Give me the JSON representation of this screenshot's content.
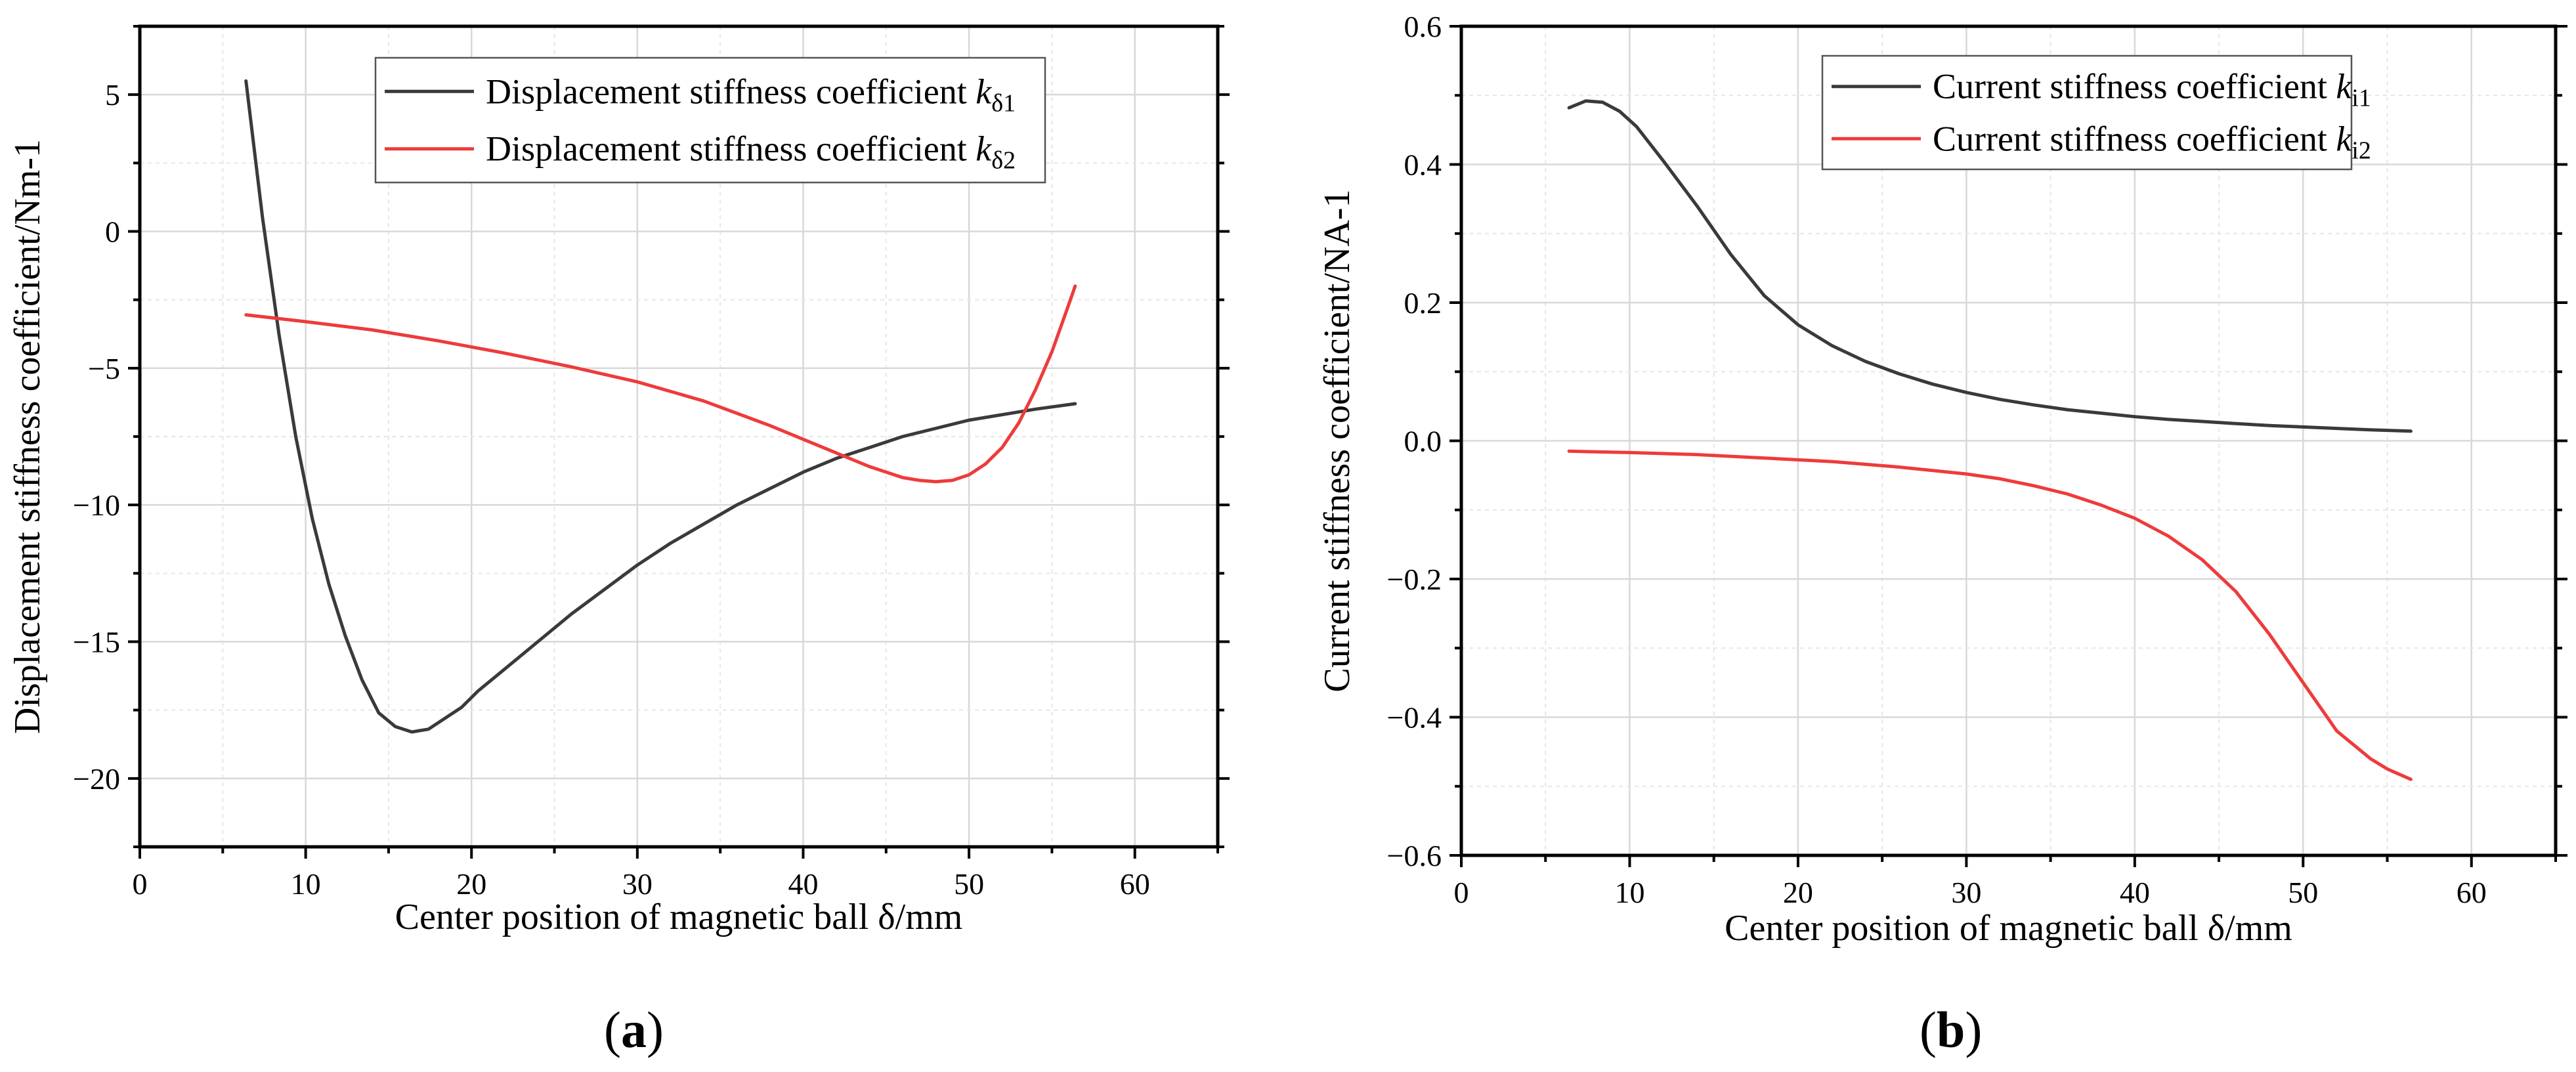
{
  "chart_data": [
    {
      "id": "a",
      "type": "line",
      "panel_label": "a",
      "title": "",
      "xlabel": "Center position of magnetic ball δ/mm",
      "ylabel": "Displacement stiffness coefficient/Nm-1",
      "xlim": [
        0,
        65
      ],
      "ylim": [
        -22.5,
        7.5
      ],
      "xticks": [
        0,
        10,
        20,
        30,
        40,
        50,
        60
      ],
      "xtick_labels": [
        "0",
        "10",
        "20",
        "30",
        "40",
        "50",
        "60"
      ],
      "yticks": [
        5,
        0,
        -5,
        -10,
        -15,
        -20
      ],
      "ytick_labels": [
        "5",
        "0",
        "−5",
        "−10",
        "−15",
        "−20"
      ],
      "grid": true,
      "legend": "top-right",
      "series": [
        {
          "name": "Displacement stiffness coefficient kδ1",
          "legend_text": "Displacement stiffness coefficient ",
          "legend_k": "k",
          "legend_sub": "δ1",
          "color": "#3a3a3a",
          "x": [
            6.4,
            7.4,
            8.4,
            9.4,
            10.4,
            11.4,
            12.4,
            13.4,
            14.4,
            15.4,
            16.4,
            17.4,
            18.4,
            19.4,
            20.4,
            22,
            24,
            26,
            28,
            30,
            32,
            34,
            36,
            38,
            40,
            42,
            44,
            46,
            48,
            50,
            52,
            54,
            56.4
          ],
          "y": [
            5.5,
            0.5,
            -3.8,
            -7.5,
            -10.5,
            -12.9,
            -14.8,
            -16.4,
            -17.6,
            -18.1,
            -18.3,
            -18.2,
            -17.8,
            -17.4,
            -16.8,
            -16,
            -15,
            -14,
            -13.1,
            -12.2,
            -11.4,
            -10.7,
            -10.0,
            -9.4,
            -8.8,
            -8.3,
            -7.9,
            -7.5,
            -7.2,
            -6.9,
            -6.7,
            -6.5,
            -6.3
          ]
        },
        {
          "name": "Displacement stiffness coefficient kδ2",
          "legend_text": "Displacement stiffness coefficient ",
          "legend_k": "k",
          "legend_sub": "δ2",
          "color": "#ee3b3b",
          "x": [
            6.4,
            10,
            14,
            18,
            22,
            26,
            30,
            34,
            38,
            40,
            42,
            44,
            46,
            47,
            48,
            49,
            50,
            51,
            52,
            53,
            54,
            55,
            56,
            56.4
          ],
          "y": [
            -3.05,
            -3.3,
            -3.6,
            -4.0,
            -4.45,
            -4.95,
            -5.5,
            -6.2,
            -7.1,
            -7.6,
            -8.1,
            -8.6,
            -9.0,
            -9.1,
            -9.15,
            -9.1,
            -8.9,
            -8.5,
            -7.9,
            -7.0,
            -5.8,
            -4.4,
            -2.7,
            -2.0
          ]
        }
      ]
    },
    {
      "id": "b",
      "type": "line",
      "panel_label": "b",
      "title": "",
      "xlabel": "Center position of magnetic ball δ/mm",
      "ylabel": "Current stiffness coefficient/NA-1",
      "xlim": [
        0,
        65
      ],
      "ylim": [
        -0.6,
        0.6
      ],
      "xticks": [
        0,
        10,
        20,
        30,
        40,
        50,
        60
      ],
      "xtick_labels": [
        "0",
        "10",
        "20",
        "30",
        "40",
        "50",
        "60"
      ],
      "yticks": [
        0.6,
        0.4,
        0.2,
        0.0,
        -0.2,
        -0.4,
        -0.6
      ],
      "ytick_labels": [
        "0.6",
        "0.4",
        "0.2",
        "0.0",
        "−0.2",
        "−0.4",
        "−0.6"
      ],
      "grid": true,
      "legend": "top-right",
      "series": [
        {
          "name": "Current stiffness coefficient ki1",
          "legend_text": "Current stiffness coefficient ",
          "legend_k": "k",
          "legend_sub": "i1",
          "color": "#3a3a3a",
          "x": [
            6.4,
            7.4,
            8.4,
            9.4,
            10.4,
            12,
            14,
            16,
            18,
            20,
            22,
            24,
            26,
            28,
            30,
            32,
            34,
            36,
            38,
            40,
            42,
            44,
            46,
            48,
            50,
            52,
            54,
            56.4
          ],
          "y": [
            0.482,
            0.492,
            0.49,
            0.477,
            0.455,
            0.405,
            0.34,
            0.27,
            0.21,
            0.168,
            0.138,
            0.115,
            0.097,
            0.082,
            0.07,
            0.06,
            0.052,
            0.045,
            0.04,
            0.035,
            0.031,
            0.028,
            0.025,
            0.022,
            0.02,
            0.018,
            0.016,
            0.014
          ]
        },
        {
          "name": "Current stiffness coefficient ki2",
          "legend_text": "Current stiffness coefficient ",
          "legend_k": "k",
          "legend_sub": "i2",
          "color": "#ee3b3b",
          "x": [
            6.4,
            10,
            14,
            18,
            22,
            26,
            30,
            32,
            34,
            36,
            38,
            40,
            42,
            44,
            46,
            48,
            50,
            52,
            54,
            55,
            56.4
          ],
          "y": [
            -0.015,
            -0.017,
            -0.02,
            -0.025,
            -0.03,
            -0.038,
            -0.048,
            -0.055,
            -0.065,
            -0.077,
            -0.093,
            -0.112,
            -0.138,
            -0.172,
            -0.218,
            -0.28,
            -0.35,
            -0.42,
            -0.46,
            -0.475,
            -0.49
          ]
        }
      ]
    }
  ]
}
